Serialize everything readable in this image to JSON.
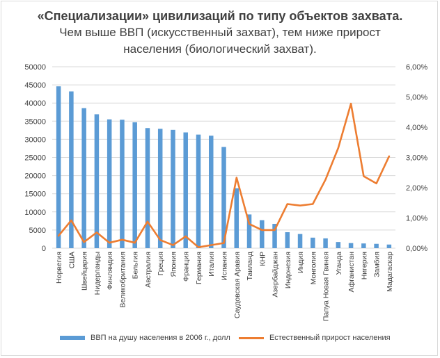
{
  "title_line1": "«Специализации» цивилизаций по типу объектов захвата.",
  "title_line2": "Чем выше ВВП (искусственный захват), тем ниже прирост",
  "title_line3": "населения (биологический захват).",
  "colors": {
    "bars": "#5b9bd5",
    "line": "#ed7d31",
    "grid": "#d9d9d9",
    "text": "#404040"
  },
  "chart_data": {
    "type": "bar",
    "categories": [
      "Норвегия",
      "США",
      "Швейцария",
      "Нидерланды",
      "Финляндия",
      "Великобритания",
      "Бельгия",
      "Австралия",
      "Греция",
      "Япония",
      "Франция",
      "Германия",
      "Италия",
      "Испания",
      "Саудовская Аравия",
      "Таиланд",
      "КНР",
      "Азербайджан",
      "Индонезия",
      "Индия",
      "Монголия",
      "Папуа Новая Гвинея",
      "Уганда",
      "Афганистан",
      "Нигерия",
      "Замбия",
      "Мадагаскар"
    ],
    "series": [
      {
        "name": "ВВП на душу населения в 2006 г., долл",
        "kind": "bar",
        "axis": "left",
        "values": [
          44600,
          43200,
          38600,
          36900,
          35500,
          35400,
          34700,
          33100,
          32900,
          32600,
          31900,
          31300,
          31000,
          27900,
          16500,
          9300,
          7700,
          6700,
          4400,
          3900,
          2900,
          2700,
          1700,
          1400,
          1300,
          1200,
          1000
        ]
      },
      {
        "name": "Естественный прирост населения",
        "kind": "line",
        "axis": "right",
        "values": [
          0.0041,
          0.0092,
          0.002,
          0.0052,
          0.0018,
          0.0028,
          0.0018,
          0.0088,
          0.0027,
          0.001,
          0.0039,
          0.0003,
          0.001,
          0.0017,
          0.0233,
          0.008,
          0.006,
          0.006,
          0.0146,
          0.0141,
          0.0146,
          0.0227,
          0.0331,
          0.0478,
          0.0238,
          0.0214,
          0.0304
        ]
      }
    ],
    "y_left": {
      "min": 0,
      "max": 50000,
      "ticks": [
        "0",
        "5000",
        "10000",
        "15000",
        "20000",
        "25000",
        "30000",
        "35000",
        "40000",
        "45000",
        "50000"
      ]
    },
    "y_right": {
      "min": 0,
      "max": 0.06,
      "ticks": [
        "0,00%",
        "1,00%",
        "2,00%",
        "3,00%",
        "4,00%",
        "5,00%",
        "6,00%"
      ]
    },
    "grid": true,
    "legend_position": "bottom"
  }
}
